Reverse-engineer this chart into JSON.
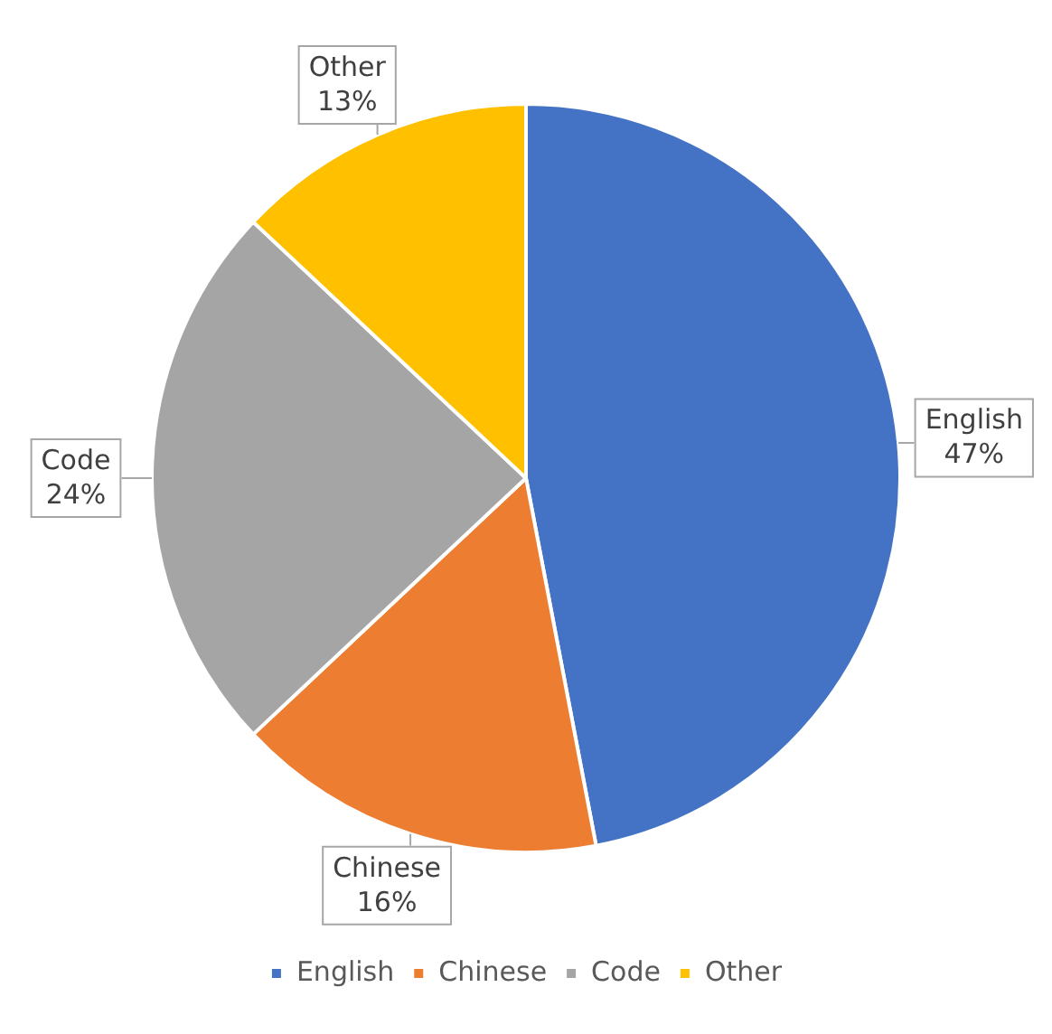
{
  "chart_data": {
    "type": "pie",
    "categories": [
      "English",
      "Chinese",
      "Code",
      "Other"
    ],
    "values": [
      47,
      16,
      24,
      13
    ],
    "value_labels": [
      "47%",
      "16%",
      "24%",
      "13%"
    ],
    "colors": [
      "#4472c4",
      "#ed7d31",
      "#a5a5a5",
      "#ffc000"
    ],
    "legend": "bottom"
  }
}
